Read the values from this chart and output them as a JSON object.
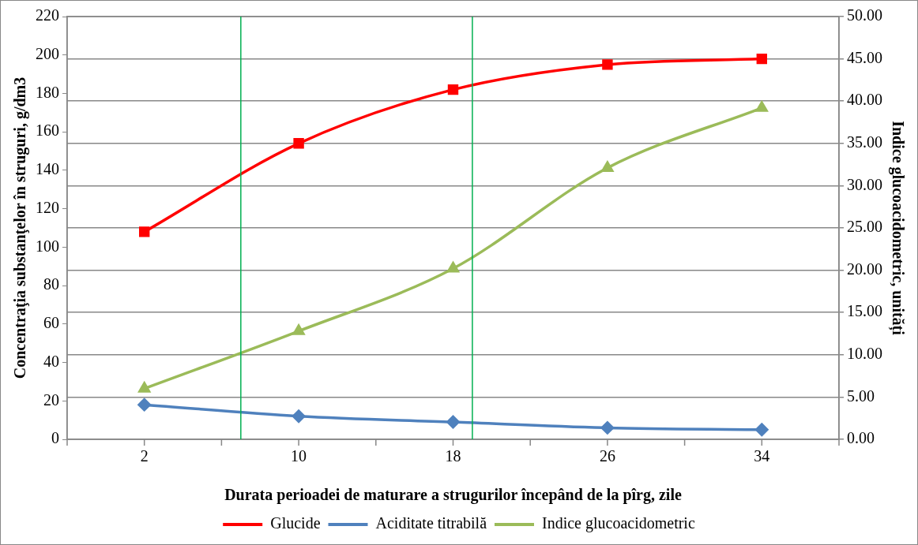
{
  "chart_data": {
    "type": "line",
    "xlabel": "Durata perioadei de maturare a strugurilor începând de la pîrg, zile",
    "ylabel": "Concentraţia substanţelor în struguri, g/dm3",
    "y2label": "Indice glucoacidometric, unități",
    "x": [
      2,
      10,
      18,
      26,
      34
    ],
    "series": [
      {
        "name": "Glucide",
        "color": "#ff0000",
        "marker": "square",
        "values": [
          108,
          154,
          182,
          195,
          198
        ]
      },
      {
        "name": "Aciditate titrabilă",
        "color": "#4f81bd",
        "marker": "diamond",
        "values": [
          18,
          12,
          9,
          6,
          5
        ]
      },
      {
        "name": "Indice glucoacidometric",
        "color": "#9bbb59",
        "marker": "triangle",
        "axis": "y2",
        "values": [
          6.0,
          12.8,
          20.2,
          32.1,
          39.2
        ]
      }
    ],
    "xlim": [
      -2,
      38
    ],
    "xticks": [
      {
        "value": -2,
        "label": null
      },
      2,
      {
        "value": 6,
        "label": null
      },
      10,
      {
        "value": 14,
        "label": null
      },
      18,
      {
        "value": 22,
        "label": null
      },
      26,
      {
        "value": 30,
        "label": null
      },
      34,
      {
        "value": 38,
        "label": null
      }
    ],
    "ylim": [
      0,
      220
    ],
    "yticks": [
      0,
      20,
      40,
      60,
      80,
      100,
      120,
      140,
      160,
      180,
      200,
      220
    ],
    "y2lim": [
      0,
      50
    ],
    "y2ticks": [
      {
        "value": 0,
        "label": "0.00"
      },
      {
        "value": 5,
        "label": "5.00"
      },
      {
        "value": 10,
        "label": "10.00"
      },
      {
        "value": 15,
        "label": "15.00"
      },
      {
        "value": 20,
        "label": "20.00"
      },
      {
        "value": 25,
        "label": "25.00"
      },
      {
        "value": 30,
        "label": "30.00"
      },
      {
        "value": 35,
        "label": "35.00"
      },
      {
        "value": 40,
        "label": "40.00"
      },
      {
        "value": 45,
        "label": "45.00"
      },
      {
        "value": 50,
        "label": "50.00"
      }
    ],
    "ref_lines": [
      {
        "axis": "x",
        "value": 7,
        "color": "#00b050"
      },
      {
        "axis": "x",
        "value": 19,
        "color": "#00b050"
      }
    ],
    "grid": "y",
    "legend": "bottom"
  }
}
